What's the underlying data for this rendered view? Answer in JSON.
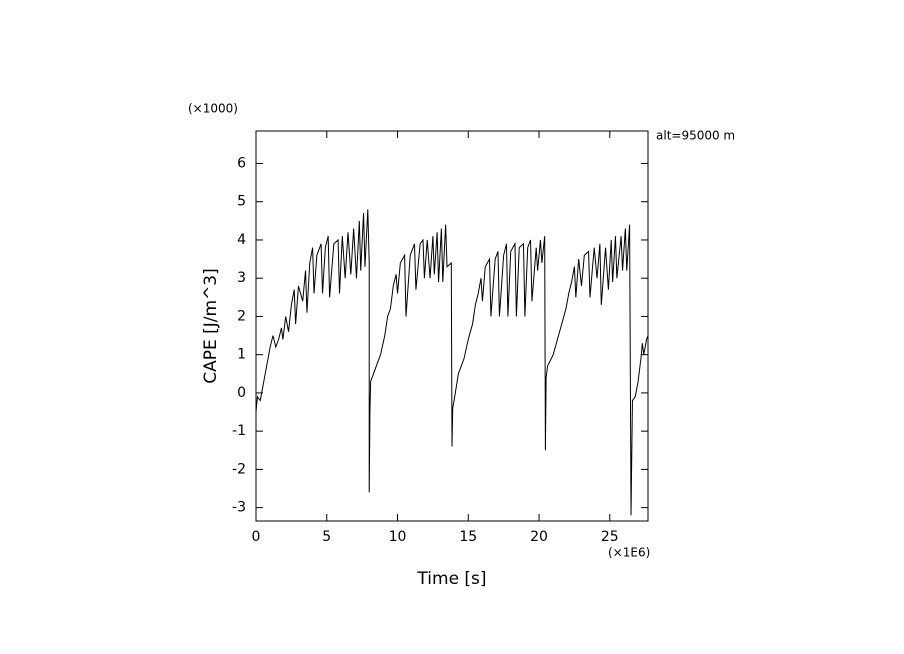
{
  "chart_data": {
    "type": "line",
    "y_multiplier": "(×1000)",
    "x_multiplier": "(×1E6)",
    "annotation": "alt=95000 m",
    "xlabel": "Time [s]",
    "ylabel": "CAPE [J/m^3]",
    "xlim": [
      0,
      27.7
    ],
    "ylim": [
      -3.35,
      6.85
    ],
    "xticks": [
      0,
      5,
      10,
      15,
      20,
      25
    ],
    "yticks": [
      -3,
      -2,
      -1,
      0,
      1,
      2,
      3,
      4,
      5,
      6
    ],
    "series": [
      {
        "color": "#000000",
        "x": [
          0,
          0.1,
          0.3,
          0.5,
          0.8,
          1.0,
          1.2,
          1.4,
          1.6,
          1.8,
          1.9,
          2.1,
          2.3,
          2.5,
          2.7,
          2.8,
          3.0,
          3.3,
          3.5,
          3.6,
          3.8,
          4.0,
          4.1,
          4.3,
          4.6,
          4.7,
          4.9,
          5.1,
          5.2,
          5.5,
          5.8,
          5.9,
          6.1,
          6.3,
          6.5,
          6.7,
          6.9,
          7.1,
          7.3,
          7.4,
          7.6,
          7.7,
          7.9,
          8.0,
          8.0,
          8.05,
          8.1,
          8.4,
          8.8,
          9.1,
          9.3,
          9.5,
          9.7,
          9.9,
          10.0,
          10.2,
          10.5,
          10.6,
          10.9,
          11.2,
          11.3,
          11.6,
          11.8,
          11.9,
          12.1,
          12.3,
          12.5,
          12.6,
          12.8,
          12.9,
          13.1,
          13.2,
          13.4,
          13.5,
          13.8,
          13.85,
          13.9,
          14.0,
          14.3,
          14.7,
          15.0,
          15.3,
          15.5,
          15.7,
          15.9,
          16.0,
          16.2,
          16.5,
          16.6,
          16.9,
          17.1,
          17.2,
          17.5,
          17.7,
          17.8,
          18.0,
          18.3,
          18.4,
          18.6,
          18.9,
          19.0,
          19.2,
          19.4,
          19.5,
          19.8,
          19.9,
          20.1,
          20.2,
          20.4,
          20.45,
          20.5,
          20.6,
          21.0,
          21.3,
          21.6,
          21.9,
          22.1,
          22.3,
          22.5,
          22.6,
          22.8,
          23.0,
          23.2,
          23.5,
          23.6,
          23.9,
          24.1,
          24.3,
          24.4,
          24.7,
          24.9,
          25.1,
          25.2,
          25.4,
          25.5,
          25.8,
          25.9,
          26.1,
          26.2,
          26.4,
          26.5,
          26.6,
          26.8,
          27.0,
          27.2,
          27.3,
          27.4,
          27.6,
          27.7
        ],
        "values": [
          -0.5,
          -0.1,
          -0.2,
          0.2,
          0.8,
          1.2,
          1.5,
          1.2,
          1.4,
          1.7,
          1.4,
          2.0,
          1.6,
          2.3,
          2.7,
          1.8,
          2.8,
          2.4,
          3.2,
          2.1,
          3.4,
          3.8,
          2.6,
          3.6,
          3.9,
          2.6,
          3.8,
          4.1,
          2.5,
          3.9,
          4.0,
          2.6,
          4.1,
          3.0,
          4.2,
          3.1,
          4.3,
          3.0,
          4.5,
          3.2,
          4.7,
          3.3,
          4.8,
          3.4,
          -2.6,
          -0.5,
          0.3,
          0.6,
          1.0,
          1.5,
          2.0,
          2.2,
          2.8,
          3.1,
          2.6,
          3.4,
          3.6,
          2.0,
          3.6,
          3.9,
          2.7,
          3.9,
          4.0,
          3.0,
          4.0,
          3.0,
          4.1,
          3.1,
          4.2,
          2.9,
          4.3,
          2.9,
          4.4,
          3.3,
          3.4,
          -1.4,
          -0.4,
          -0.2,
          0.5,
          0.9,
          1.4,
          1.8,
          2.3,
          2.6,
          3.0,
          2.4,
          3.3,
          3.5,
          2.0,
          3.5,
          3.7,
          2.0,
          3.6,
          3.9,
          2.0,
          3.7,
          3.9,
          2.0,
          3.8,
          3.9,
          2.0,
          3.8,
          4.0,
          2.4,
          3.8,
          3.2,
          4.0,
          3.4,
          4.1,
          -1.5,
          0.4,
          0.7,
          1.0,
          1.4,
          1.8,
          2.2,
          2.6,
          2.9,
          3.3,
          2.5,
          3.5,
          2.8,
          3.6,
          3.7,
          2.5,
          3.8,
          3.0,
          3.9,
          2.3,
          3.8,
          2.7,
          4.0,
          2.9,
          4.1,
          3.0,
          4.1,
          3.2,
          4.3,
          3.2,
          4.4,
          -3.2,
          -0.2,
          -0.1,
          0.3,
          0.9,
          1.3,
          1.0,
          1.4,
          1.5
        ]
      }
    ]
  }
}
